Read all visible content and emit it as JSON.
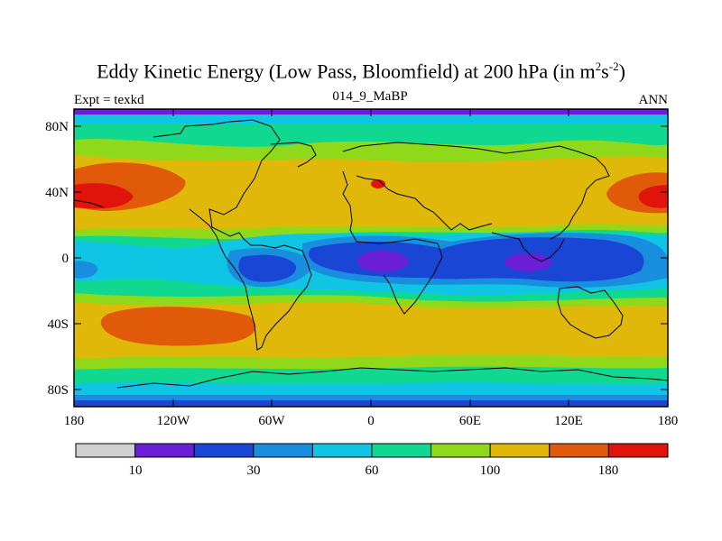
{
  "title": "Eddy Kinetic Energy (Low Pass, Bloomfield) at 200 hPa (in m",
  "title_unit_exp1": "2",
  "title_unit_s": "s",
  "title_unit_exp2": "-2",
  "title_close": ")",
  "subtitle": "014_9_MaBP",
  "left_label": "Expt = texkd",
  "right_label": "ANN",
  "lat_labels": [
    "80N",
    "40N",
    "0",
    "40S",
    "80S"
  ],
  "lon_labels": [
    "180",
    "120W",
    "60W",
    "0",
    "60E",
    "120E",
    "180"
  ],
  "colorbar": {
    "colors": [
      "#d0d0d0",
      "#6a1fd6",
      "#1a46d6",
      "#1a8ede",
      "#10c4e4",
      "#10d890",
      "#90d81a",
      "#e0b80a",
      "#e05a0a",
      "#e0140a"
    ],
    "labels": [
      "10",
      "30",
      "60",
      "100",
      "180"
    ]
  }
}
